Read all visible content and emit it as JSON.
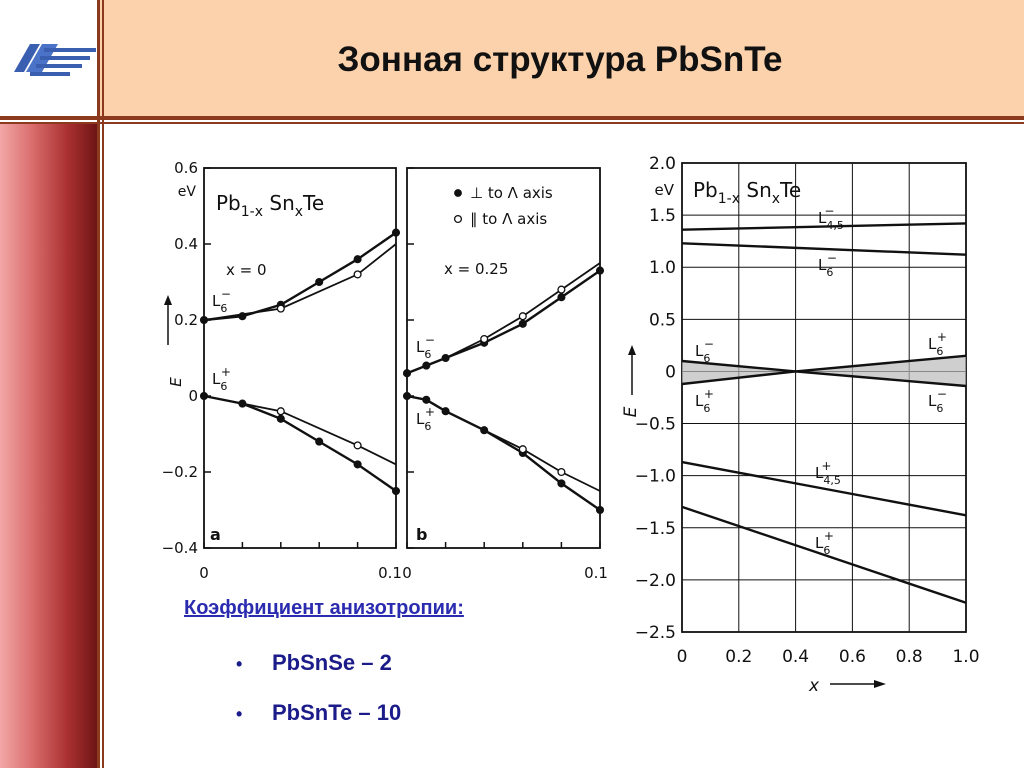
{
  "slide": {
    "title": "Зонная структура PbSnTe",
    "subtitle": "Коэффициент анизотропии:",
    "bullets": [
      {
        "marker": "•",
        "text": "PbSnSe – 2"
      },
      {
        "marker": "•",
        "text": "PbSnTe – 10"
      }
    ]
  },
  "colors": {
    "header_bg": "#fbd2ac",
    "rule": "#8b3a1e",
    "accent_text": "#2b2bb0",
    "bullet_text": "#1b1b8a"
  },
  "chart_data": [
    {
      "type": "line",
      "panel_label": "a",
      "compound": "Pb1-x SnxTe",
      "annotation": "x = 0",
      "y_unit": "eV",
      "ylabel": "E",
      "xlim": [
        0,
        0.1
      ],
      "ylim": [
        -0.4,
        0.6
      ],
      "x_ticks": [
        "0",
        "0.1"
      ],
      "y_ticks": [
        "0.6",
        "0.4",
        "0.2",
        "0",
        "−0.2",
        "−0.4"
      ],
      "band_labels": [
        "L6−",
        "L6+"
      ],
      "series": [
        {
          "marker": "filled",
          "x": [
            0,
            0.02,
            0.04,
            0.06,
            0.08,
            0.1
          ],
          "y": [
            0.2,
            0.21,
            0.24,
            0.3,
            0.36,
            0.43
          ]
        },
        {
          "marker": "open",
          "x": [
            0.04,
            0.08
          ],
          "y": [
            0.23,
            0.32
          ]
        },
        {
          "marker": "filled",
          "x": [
            0,
            0.02,
            0.04,
            0.06,
            0.08,
            0.1
          ],
          "y": [
            0,
            -0.02,
            -0.06,
            -0.12,
            -0.18,
            -0.25
          ]
        },
        {
          "marker": "open",
          "x": [
            0.04,
            0.08
          ],
          "y": [
            -0.04,
            -0.13
          ]
        }
      ]
    },
    {
      "type": "line",
      "panel_label": "b",
      "annotation": "x = 0.25",
      "legend": [
        "⊥ to Λ axis",
        "∥ to Λ axis"
      ],
      "xlim": [
        0,
        0.1
      ],
      "ylim": [
        -0.4,
        0.6
      ],
      "x_ticks": [
        "0",
        "0.1"
      ],
      "band_labels": [
        "L6−",
        "L6+"
      ],
      "series": [
        {
          "marker": "filled",
          "x": [
            0,
            0.01,
            0.02,
            0.04,
            0.06,
            0.08,
            0.1
          ],
          "y": [
            0.06,
            0.08,
            0.1,
            0.14,
            0.19,
            0.26,
            0.33
          ]
        },
        {
          "marker": "open",
          "x": [
            0.04,
            0.06,
            0.08
          ],
          "y": [
            0.15,
            0.21,
            0.28
          ]
        },
        {
          "marker": "filled",
          "x": [
            0,
            0.01,
            0.02,
            0.04,
            0.06,
            0.08,
            0.1
          ],
          "y": [
            0,
            -0.01,
            -0.04,
            -0.09,
            -0.15,
            -0.23,
            -0.3
          ]
        },
        {
          "marker": "open",
          "x": [
            0.06,
            0.08
          ],
          "y": [
            -0.14,
            -0.2
          ]
        }
      ]
    },
    {
      "type": "line",
      "compound": "Pb1-x SnxTe",
      "y_unit": "eV",
      "ylabel": "E",
      "xlabel": "x",
      "xlim": [
        0,
        1.0
      ],
      "ylim": [
        -2.5,
        2.0
      ],
      "grid": true,
      "x_ticks": [
        "0",
        "0.2",
        "0.4",
        "0.6",
        "0.8",
        "1.0"
      ],
      "y_ticks": [
        "2.0",
        "1.5",
        "1.0",
        "0.5",
        "0",
        "−0.5",
        "−1.0",
        "−1.5",
        "−2.0",
        "−2.5"
      ],
      "band_labels": [
        "L4,5−",
        "L6−",
        "L6−",
        "L6+",
        "L6+",
        "L6−",
        "L4,5+",
        "L6+"
      ],
      "series": [
        {
          "band": "L4,5−",
          "x": [
            0,
            1.0
          ],
          "y": [
            1.36,
            1.42
          ]
        },
        {
          "band": "L6−",
          "x": [
            0,
            1.0
          ],
          "y": [
            1.23,
            1.12
          ]
        },
        {
          "band": "L6− → L6+",
          "x": [
            0,
            0.4,
            1.0
          ],
          "y": [
            0.1,
            0,
            0.15
          ]
        },
        {
          "band": "L6+ → L6−",
          "x": [
            0,
            0.4,
            1.0
          ],
          "y": [
            -0.12,
            0,
            -0.14
          ]
        },
        {
          "band": "L4,5+",
          "x": [
            0,
            1.0
          ],
          "y": [
            -0.87,
            -1.38
          ]
        },
        {
          "band": "L6+",
          "x": [
            0,
            1.0
          ],
          "y": [
            -1.3,
            -2.22
          ]
        }
      ]
    }
  ]
}
